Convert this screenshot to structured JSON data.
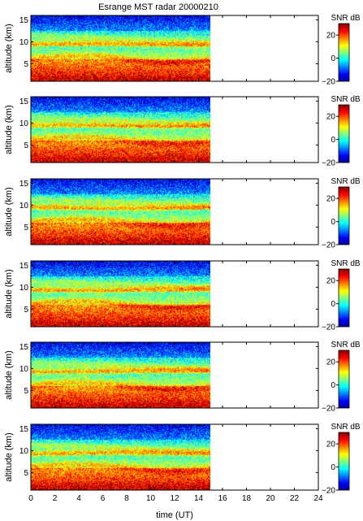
{
  "title": "Esrange MST radar 20000210",
  "chart_data": {
    "type": "heatmap",
    "title": "Esrange MST radar 20000210",
    "xlabel": "time (UT)",
    "ylabel": "altitude (km)",
    "xlim": [
      0,
      24
    ],
    "ylim": [
      1,
      16
    ],
    "xticks": [
      "0",
      "2",
      "4",
      "6",
      "8",
      "10",
      "12",
      "14",
      "16",
      "18",
      "20",
      "22",
      "24"
    ],
    "yticks": [
      "5",
      "10",
      "15"
    ],
    "data_time_range": [
      0,
      15
    ],
    "colorbar": {
      "label": "SNR dB",
      "range": [
        -20,
        30
      ],
      "ticks": [
        "20",
        "0",
        "−20"
      ],
      "colormap": "jet"
    },
    "panels": [
      {
        "index": 1,
        "description": "SNR height-time intensity"
      },
      {
        "index": 2,
        "description": "SNR height-time intensity"
      },
      {
        "index": 3,
        "description": "SNR height-time intensity"
      },
      {
        "index": 4,
        "description": "SNR height-time intensity"
      },
      {
        "index": 5,
        "description": "SNR height-time intensity"
      },
      {
        "index": 6,
        "description": "SNR height-time intensity"
      }
    ]
  }
}
